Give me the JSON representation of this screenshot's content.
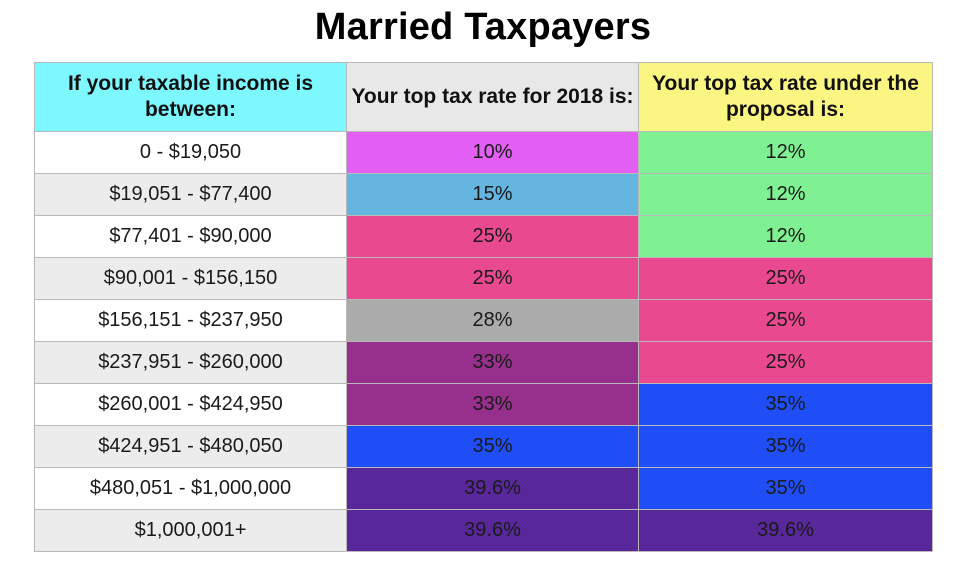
{
  "title": "Married Taxpayers",
  "headers": {
    "income": "If your taxable income is between:",
    "rate_2018": "Your top tax rate for 2018 is:",
    "rate_proposal": "Your top tax rate under the proposal is:"
  },
  "header_colors": {
    "income": "#7ef8ff",
    "rate_2018": "#e8e8e8",
    "rate_proposal": "#fbf681"
  },
  "rows": [
    {
      "income": "0 - $19,050",
      "rate_2018": "10%",
      "rate_proposal": "12%"
    },
    {
      "income": "$19,051 - $77,400",
      "rate_2018": "15%",
      "rate_proposal": "12%"
    },
    {
      "income": "$77,401 - $90,000",
      "rate_2018": "25%",
      "rate_proposal": "12%"
    },
    {
      "income": "$90,001 - $156,150",
      "rate_2018": "25%",
      "rate_proposal": "25%"
    },
    {
      "income": "$156,151 - $237,950",
      "rate_2018": "28%",
      "rate_proposal": "25%"
    },
    {
      "income": "$237,951 - $260,000",
      "rate_2018": "33%",
      "rate_proposal": "25%"
    },
    {
      "income": "$260,001 - $424,950",
      "rate_2018": "33%",
      "rate_proposal": "35%"
    },
    {
      "income": "$424,951 - $480,050",
      "rate_2018": "35%",
      "rate_proposal": "35%"
    },
    {
      "income": "$480,051 - $1,000,000",
      "rate_2018": "39.6%",
      "rate_proposal": "35%"
    },
    {
      "income": "$1,000,001+",
      "rate_2018": "39.6%",
      "rate_proposal": "39.6%"
    }
  ],
  "rate_colors": {
    "10%": "#e460f4",
    "12%": "#7ff193",
    "15%": "#65b5e1",
    "25%": "#e9498f",
    "28%": "#ababab",
    "33%": "#96308c",
    "35%": "#1f4ef7",
    "39.6%": "#58289a"
  }
}
